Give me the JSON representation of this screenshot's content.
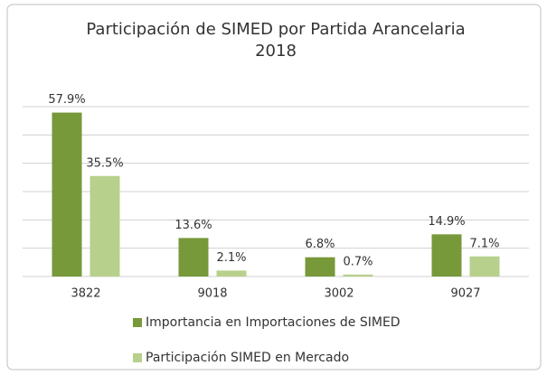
{
  "chart_data": {
    "type": "bar",
    "title_lines": [
      "Participación de SIMED por Partida Arancelaria",
      "2018"
    ],
    "categories": [
      "3822",
      "9018",
      "3002",
      "9027"
    ],
    "series": [
      {
        "name": "Importancia en Importaciones de SIMED",
        "color": "#77993a",
        "values": [
          57.9,
          13.6,
          6.8,
          14.9
        ],
        "value_labels": [
          "57.9%",
          "13.6%",
          "6.8%",
          "14.9%"
        ]
      },
      {
        "name": "Participación SIMED en Mercado",
        "color": "#b7d08c",
        "values": [
          35.5,
          2.1,
          0.7,
          7.1
        ],
        "value_labels": [
          "35.5%",
          "2.1%",
          "0.7%",
          "7.1%"
        ]
      }
    ],
    "ylim": [
      0,
      60
    ],
    "yticks": [
      0,
      10,
      20,
      30,
      40,
      50,
      60
    ],
    "grid": true,
    "legend": "bottom"
  }
}
